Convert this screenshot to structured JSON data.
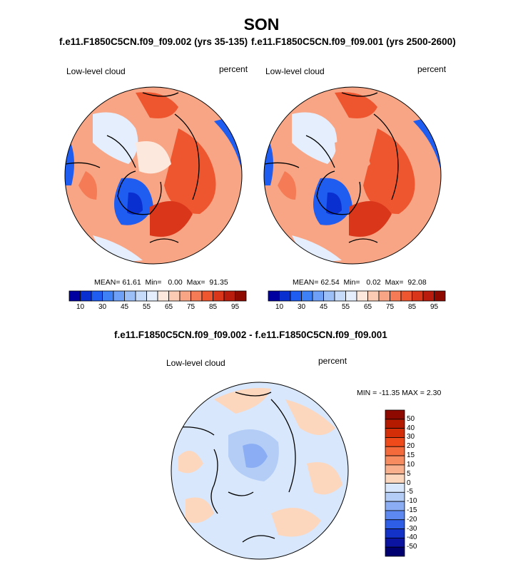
{
  "main_title": "SON",
  "chart_data": [
    {
      "type": "heatmap",
      "panel": "left",
      "title": "f.e11.F1850C5CN.f09_f09.002 (yrs 35-135)",
      "variable_label": "Low-level cloud",
      "units_label": "percent",
      "stats": {
        "mean": "61.61",
        "min": "0.00",
        "max": "91.35"
      },
      "colorbar_ticks": [
        "10",
        "30",
        "45",
        "55",
        "65",
        "75",
        "85",
        "95"
      ],
      "colorbar_colors": [
        "#0000a0",
        "#0a2fd0",
        "#1f5cf0",
        "#3e80f5",
        "#6fa0f7",
        "#9dbff7",
        "#c6dbfa",
        "#e4eefc",
        "#fde8dd",
        "#fbcbb3",
        "#f8a585",
        "#f47b55",
        "#ee5630",
        "#d9361a",
        "#b91c0c",
        "#8e0a00"
      ],
      "projection": "north polar stereographic"
    },
    {
      "type": "heatmap",
      "panel": "right",
      "title": "f.e11.F1850C5CN.f09_f09.001 (yrs 2500-2600)",
      "variable_label": "Low-level cloud",
      "units_label": "percent",
      "stats": {
        "mean": "62.54",
        "min": "0.02",
        "max": "92.08"
      },
      "colorbar_ticks": [
        "10",
        "30",
        "45",
        "55",
        "65",
        "75",
        "85",
        "95"
      ],
      "colorbar_colors": [
        "#0000a0",
        "#0a2fd0",
        "#1f5cf0",
        "#3e80f5",
        "#6fa0f7",
        "#9dbff7",
        "#c6dbfa",
        "#e4eefc",
        "#fde8dd",
        "#fbcbb3",
        "#f8a585",
        "#f47b55",
        "#ee5630",
        "#d9361a",
        "#b91c0c",
        "#8e0a00"
      ],
      "projection": "north polar stereographic"
    },
    {
      "type": "heatmap",
      "panel": "difference",
      "title": "f.e11.F1850C5CN.f09_f09.002 - f.e11.F1850C5CN.f09_f09.001",
      "variable_label": "Low-level cloud",
      "units_label": "percent",
      "min_max_text": "MIN = -11.35 MAX =   2.30",
      "colorbar_ticks": [
        "50",
        "40",
        "30",
        "20",
        "15",
        "10",
        "5",
        "0",
        "-5",
        "-10",
        "-15",
        "-20",
        "-30",
        "-40",
        "-50"
      ],
      "colorbar_colors": [
        "#8e0a00",
        "#b31a00",
        "#d42e08",
        "#ee4a1a",
        "#f56a3a",
        "#f78c60",
        "#f9b08c",
        "#fcd7be",
        "#d8e7fb",
        "#b3cdf7",
        "#8aadf3",
        "#5c88ef",
        "#2f5ee6",
        "#1232c8",
        "#0a14a0",
        "#000070"
      ],
      "projection": "north polar stereographic"
    }
  ]
}
